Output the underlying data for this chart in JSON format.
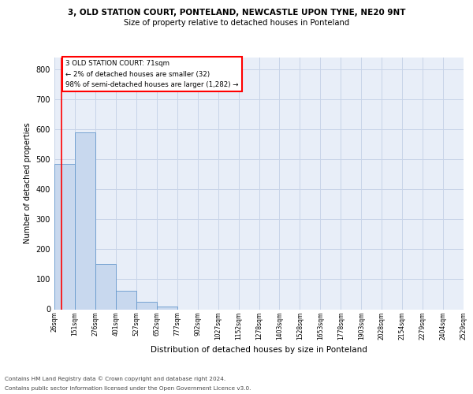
{
  "title_line1": "3, OLD STATION COURT, PONTELAND, NEWCASTLE UPON TYNE, NE20 9NT",
  "title_line2": "Size of property relative to detached houses in Ponteland",
  "xlabel": "Distribution of detached houses by size in Ponteland",
  "ylabel": "Number of detached properties",
  "bar_values": [
    485,
    590,
    150,
    63,
    25,
    8,
    0,
    0,
    0,
    0,
    0,
    0,
    0,
    0,
    0,
    0,
    0,
    0,
    0,
    0
  ],
  "bar_labels": [
    "26sqm",
    "151sqm",
    "276sqm",
    "401sqm",
    "527sqm",
    "652sqm",
    "777sqm",
    "902sqm",
    "1027sqm",
    "1152sqm",
    "1278sqm",
    "1403sqm",
    "1528sqm",
    "1653sqm",
    "1778sqm",
    "1903sqm",
    "2028sqm",
    "2154sqm",
    "2279sqm",
    "2404sqm",
    "2529sqm"
  ],
  "bar_color": "#c8d8ee",
  "bar_edge_color": "#6699cc",
  "ylim": [
    0,
    840
  ],
  "yticks": [
    0,
    100,
    200,
    300,
    400,
    500,
    600,
    700,
    800
  ],
  "annotation_text_line1": "3 OLD STATION COURT: 71sqm",
  "annotation_text_line2": "← 2% of detached houses are smaller (32)",
  "annotation_text_line3": "98% of semi-detached houses are larger (1,282) →",
  "grid_color": "#c8d4e8",
  "background_color": "#e8eef8",
  "footer_line1": "Contains HM Land Registry data © Crown copyright and database right 2024.",
  "footer_line2": "Contains public sector information licensed under the Open Government Licence v3.0."
}
